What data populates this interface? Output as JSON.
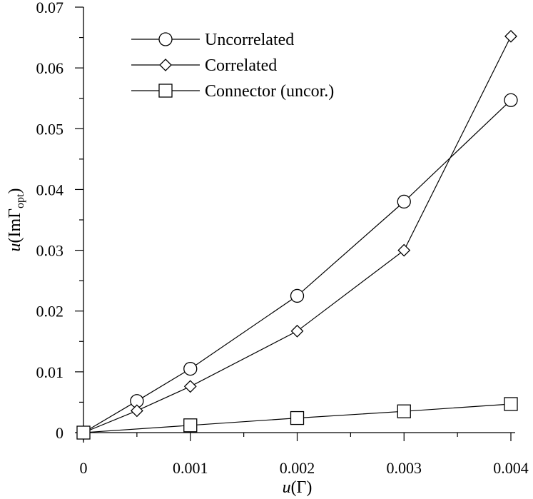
{
  "chart_data": {
    "type": "line",
    "title": "",
    "xlabel_italic": "u",
    "xlabel_rest": "(Γ)",
    "ylabel_italic": "u",
    "ylabel_main": "(ImΓ",
    "ylabel_sub": "opt",
    "ylabel_close": ")",
    "xlim": [
      0,
      0.004
    ],
    "ylim": [
      0,
      0.07
    ],
    "xticks": [
      0,
      0.001,
      0.002,
      0.003,
      0.004
    ],
    "xtick_labels": [
      "0",
      "0.001",
      "0.002",
      "0.003",
      "0.004"
    ],
    "yticks": [
      0,
      0.01,
      0.02,
      0.03,
      0.04,
      0.05,
      0.06,
      0.07
    ],
    "ytick_labels": [
      "0",
      "0.01",
      "0.02",
      "0.03",
      "0.04",
      "0.05",
      "0.06",
      "0.07"
    ],
    "legend_position": "top-left",
    "grid": false,
    "series": [
      {
        "name": "Uncorrelated",
        "marker": "circle",
        "x": [
          0,
          0.0005,
          0.001,
          0.002,
          0.003,
          0.004
        ],
        "y": [
          0,
          0.0052,
          0.0105,
          0.0225,
          0.038,
          0.0547
        ]
      },
      {
        "name": "Correlated",
        "marker": "diamond",
        "x": [
          0,
          0.0005,
          0.001,
          0.002,
          0.003,
          0.004
        ],
        "y": [
          0,
          0.0036,
          0.0076,
          0.0167,
          0.03,
          0.0652
        ]
      },
      {
        "name": "Connector (uncor.)",
        "marker": "square",
        "x": [
          0,
          0.001,
          0.002,
          0.003,
          0.004
        ],
        "y": [
          0,
          0.0012,
          0.0024,
          0.0035,
          0.0047
        ]
      }
    ]
  }
}
